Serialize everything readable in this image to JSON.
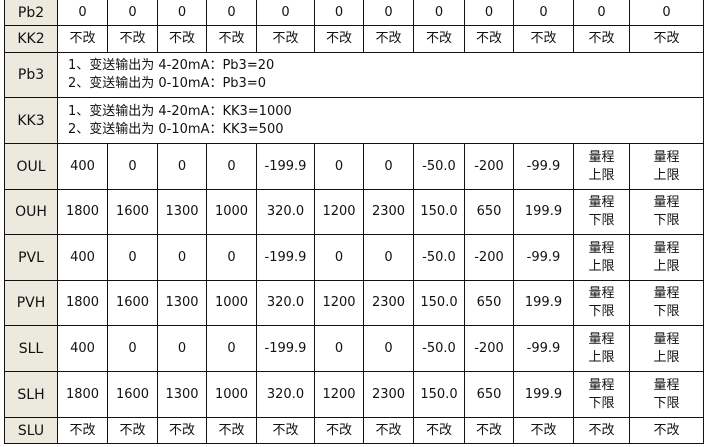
{
  "rows": [
    {
      "label": "Pb2",
      "cells": [
        "0",
        "0",
        "0",
        "0",
        "0",
        "0",
        "0",
        "0",
        "0",
        "0",
        "0",
        "0"
      ]
    },
    {
      "label": "KK2",
      "cells": [
        "不改",
        "不改",
        "不改",
        "不改",
        "不改",
        "不改",
        "不改",
        "不改",
        "不改",
        "不改",
        "不改",
        "不改"
      ]
    },
    {
      "label": "Pb3",
      "note": [
        "1、变送输出为 4-20mA：Pb3=20",
        "2、变送输出为 0-10mA：Pb3=0"
      ]
    },
    {
      "label": "KK3",
      "note": [
        "1、变送输出为 4-20mA：KK3=1000",
        "2、变送输出为 0-10mA：KK3=500"
      ]
    },
    {
      "label": "OUL",
      "cells": [
        "400",
        "0",
        "0",
        "0",
        "-199.9",
        "0",
        "0",
        "-50.0",
        "-200",
        "-99.9",
        "量程\n上限",
        "量程\n上限"
      ]
    },
    {
      "label": "OUH",
      "cells": [
        "1800",
        "1600",
        "1300",
        "1000",
        "320.0",
        "1200",
        "2300",
        "150.0",
        "650",
        "199.9",
        "量程\n下限",
        "量程\n下限"
      ]
    },
    {
      "label": "PVL",
      "cells": [
        "400",
        "0",
        "0",
        "0",
        "-199.9",
        "0",
        "0",
        "-50.0",
        "-200",
        "-99.9",
        "量程\n上限",
        "量程\n上限"
      ]
    },
    {
      "label": "PVH",
      "cells": [
        "1800",
        "1600",
        "1300",
        "1000",
        "320.0",
        "1200",
        "2300",
        "150.0",
        "650",
        "199.9",
        "量程\n下限",
        "量程\n下限"
      ]
    },
    {
      "label": "SLL",
      "cells": [
        "400",
        "0",
        "0",
        "0",
        "-199.9",
        "0",
        "0",
        "-50.0",
        "-200",
        "-99.9",
        "量程\n上限",
        "量程\n上限"
      ]
    },
    {
      "label": "SLH",
      "cells": [
        "1800",
        "1600",
        "1300",
        "1000",
        "320.0",
        "1200",
        "2300",
        "150.0",
        "650",
        "199.9",
        "量程\n下限",
        "量程\n下限"
      ]
    },
    {
      "label": "SLU",
      "cells": [
        "不改",
        "不改",
        "不改",
        "不改",
        "不改",
        "不改",
        "不改",
        "不改",
        "不改",
        "不改",
        "不改",
        "不改"
      ]
    }
  ]
}
